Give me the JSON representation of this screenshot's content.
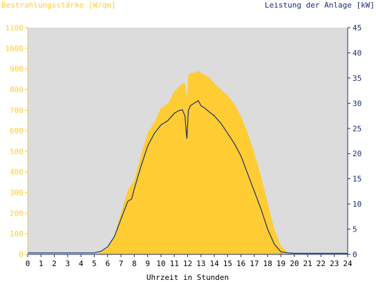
{
  "chart_data": {
    "type": "area",
    "title": "",
    "y_left_label": "Bestrahlungsstärke [W/qm]",
    "y_right_label": "Leistung der Anlage [kW]",
    "xlabel": "Uhrzeit in Stunden",
    "x_range": [
      0,
      24
    ],
    "x_ticks": [
      "0",
      "1",
      "2",
      "3",
      "4",
      "5",
      "6",
      "7",
      "8",
      "9",
      "10",
      "11",
      "12",
      "13",
      "14",
      "15",
      "16",
      "17",
      "18",
      "19",
      "20",
      "21",
      "22",
      "23",
      "24"
    ],
    "y_left_range": [
      0,
      1100
    ],
    "y_left_ticks": [
      "0",
      "100",
      "200",
      "300",
      "400",
      "500",
      "600",
      "700",
      "800",
      "900",
      "1000",
      "1100"
    ],
    "y_right_range": [
      0,
      45
    ],
    "y_right_ticks": [
      "0",
      "5",
      "10",
      "15",
      "20",
      "25",
      "30",
      "35",
      "40",
      "45"
    ],
    "grid": false,
    "colors": {
      "irradiance": "#ffcc33",
      "power": "#1a2e6e",
      "plot_bg": "#dcdcdc"
    },
    "series": [
      {
        "name": "Bestrahlungsstärke [W/qm]",
        "axis": "left",
        "x": [
          0,
          5,
          5.5,
          6,
          6.5,
          7,
          7.5,
          8,
          8.5,
          9,
          9.5,
          10,
          10.5,
          11,
          11.3,
          11.6,
          11.8,
          11.95,
          12.05,
          12.2,
          12.5,
          12.8,
          13,
          13.3,
          13.6,
          14,
          14.5,
          15,
          15.5,
          16,
          16.5,
          17,
          17.5,
          18,
          18.5,
          19,
          19.5,
          20,
          24
        ],
        "y": [
          0,
          0,
          10,
          30,
          90,
          200,
          310,
          360,
          480,
          590,
          640,
          710,
          730,
          790,
          810,
          830,
          830,
          760,
          870,
          880,
          880,
          890,
          880,
          870,
          860,
          830,
          800,
          770,
          730,
          670,
          590,
          490,
          380,
          250,
          120,
          40,
          10,
          0,
          0
        ]
      },
      {
        "name": "Leistung der Anlage [kW]",
        "axis": "right",
        "x": [
          0,
          5,
          5.5,
          6,
          6.5,
          7,
          7.5,
          7.8,
          8,
          8.5,
          9,
          9.3,
          9.5,
          10,
          10.5,
          11,
          11.3,
          11.6,
          11.8,
          11.9,
          11.95,
          12.05,
          12.2,
          12.5,
          12.8,
          13,
          13.3,
          13.6,
          14,
          14.5,
          15,
          15.5,
          16,
          16.5,
          17,
          17.5,
          18,
          18.5,
          19,
          19.5,
          20,
          24
        ],
        "y": [
          0.3,
          0.3,
          0.6,
          1.5,
          3.5,
          7,
          10.5,
          11,
          13,
          17.5,
          21.5,
          23,
          24,
          25.7,
          26.5,
          28,
          28.5,
          28.7,
          27.5,
          24,
          23,
          28.5,
          29.5,
          30,
          30.5,
          29.5,
          29,
          28.3,
          27.5,
          26,
          24,
          22,
          19.5,
          16,
          12.5,
          9,
          5,
          2,
          0.5,
          0.3,
          0.2,
          0.2
        ]
      }
    ]
  }
}
